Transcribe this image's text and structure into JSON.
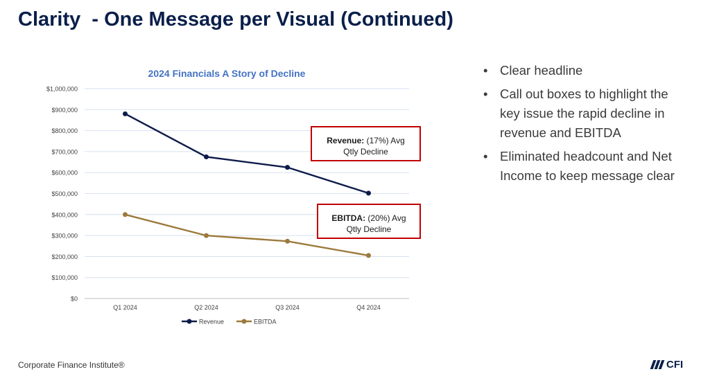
{
  "slide": {
    "title": "Clarity  - One Message per Visual (Continued)",
    "footer": "Corporate Finance Institute®",
    "logo_text": "CFI"
  },
  "callouts": {
    "revenue": {
      "bold": "Revenue:",
      "rest": " (17%) Avg",
      "line2": "Qtly Decline"
    },
    "ebitda": {
      "bold": "EBITDA:",
      "rest": " (20%) Avg",
      "line2": "Qtly Decline"
    }
  },
  "bullets": [
    "Clear headline",
    "Call out boxes to highlight the key issue the rapid decline in revenue and EBITDA",
    "Eliminated headcount and Net Income to keep message clear"
  ],
  "chart_data": {
    "type": "line",
    "title": "2024 Financials A Story of Decline",
    "categories": [
      "Q1 2024",
      "Q2 2024",
      "Q3 2024",
      "Q4 2024"
    ],
    "series": [
      {
        "name": "Revenue",
        "values": [
          880000,
          675000,
          625000,
          502000
        ],
        "color": "#0d1b4a"
      },
      {
        "name": "EBITDA",
        "values": [
          400000,
          300000,
          273000,
          205000
        ],
        "color": "#9c7a3c"
      }
    ],
    "ylim": [
      0,
      1000000
    ],
    "yticks": [
      "$0",
      "$100,000",
      "$200,000",
      "$300,000",
      "$400,000",
      "$500,000",
      "$600,000",
      "$700,000",
      "$800,000",
      "$900,000",
      "$1,000,000"
    ],
    "grid": true,
    "legend_position": "bottom",
    "title_color": "#4472c4"
  }
}
